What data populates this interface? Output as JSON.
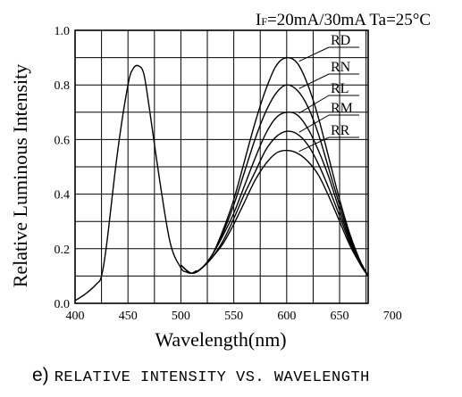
{
  "chart_data": {
    "type": "line",
    "title": "",
    "conditions": {
      "if_main": "I",
      "if_sub": "F",
      "rest": "=20mA/30mA Ta=25°C"
    },
    "xlabel": "Wavelength(nm)",
    "ylabel": "Relative Luminous Intensity",
    "xlim": [
      400,
      700
    ],
    "ylim": [
      0.0,
      1.0
    ],
    "x_ticks": [
      400,
      450,
      500,
      550,
      600,
      650,
      700
    ],
    "y_ticks": [
      "0.0",
      "0.2",
      "0.4",
      "0.6",
      "0.8",
      "1.0"
    ],
    "grid": true,
    "series": [
      {
        "name": "",
        "x": [
          400,
          410,
          420,
          425,
          430,
          440,
          450,
          455,
          460,
          465,
          470,
          480,
          490,
          500,
          505,
          510,
          515
        ],
        "y": [
          0.01,
          0.035,
          0.07,
          0.1,
          0.22,
          0.55,
          0.8,
          0.86,
          0.87,
          0.84,
          0.72,
          0.45,
          0.22,
          0.13,
          0.115,
          0.11,
          0.12
        ]
      },
      {
        "name": "RD",
        "x": [
          500,
          510,
          520,
          530,
          540,
          550,
          560,
          570,
          580,
          590,
          600,
          610,
          620,
          630,
          640,
          650,
          660,
          670,
          677
        ],
        "y": [
          0.14,
          0.11,
          0.13,
          0.18,
          0.27,
          0.38,
          0.52,
          0.66,
          0.78,
          0.87,
          0.9,
          0.88,
          0.8,
          0.68,
          0.53,
          0.38,
          0.25,
          0.15,
          0.1
        ]
      },
      {
        "name": "RN",
        "x": [
          500,
          510,
          520,
          530,
          540,
          550,
          560,
          570,
          580,
          590,
          600,
          610,
          620,
          630,
          640,
          650,
          660,
          670,
          677
        ],
        "y": [
          0.14,
          0.11,
          0.13,
          0.18,
          0.26,
          0.36,
          0.48,
          0.6,
          0.7,
          0.77,
          0.8,
          0.78,
          0.72,
          0.62,
          0.49,
          0.36,
          0.24,
          0.15,
          0.1
        ]
      },
      {
        "name": "RL",
        "x": [
          500,
          510,
          520,
          530,
          540,
          550,
          560,
          570,
          580,
          590,
          600,
          610,
          620,
          630,
          640,
          650,
          660,
          670,
          677
        ],
        "y": [
          0.14,
          0.11,
          0.13,
          0.18,
          0.25,
          0.33,
          0.43,
          0.53,
          0.62,
          0.68,
          0.7,
          0.69,
          0.64,
          0.56,
          0.46,
          0.34,
          0.23,
          0.15,
          0.1
        ]
      },
      {
        "name": "RM",
        "x": [
          500,
          510,
          520,
          530,
          540,
          550,
          560,
          570,
          580,
          590,
          600,
          610,
          620,
          630,
          640,
          650,
          660,
          670,
          677
        ],
        "y": [
          0.14,
          0.11,
          0.13,
          0.17,
          0.23,
          0.31,
          0.4,
          0.48,
          0.56,
          0.61,
          0.63,
          0.62,
          0.58,
          0.51,
          0.42,
          0.32,
          0.22,
          0.14,
          0.1
        ]
      },
      {
        "name": "RR",
        "x": [
          500,
          510,
          520,
          530,
          540,
          550,
          560,
          570,
          580,
          590,
          600,
          610,
          620,
          630,
          640,
          650,
          660,
          670,
          677
        ],
        "y": [
          0.14,
          0.11,
          0.13,
          0.17,
          0.22,
          0.29,
          0.37,
          0.45,
          0.51,
          0.55,
          0.56,
          0.55,
          0.52,
          0.47,
          0.39,
          0.3,
          0.21,
          0.14,
          0.1
        ]
      }
    ]
  },
  "caption": {
    "prefix": "e)",
    "text": "RELATIVE INTENSITY VS. WAVELENGTH"
  }
}
